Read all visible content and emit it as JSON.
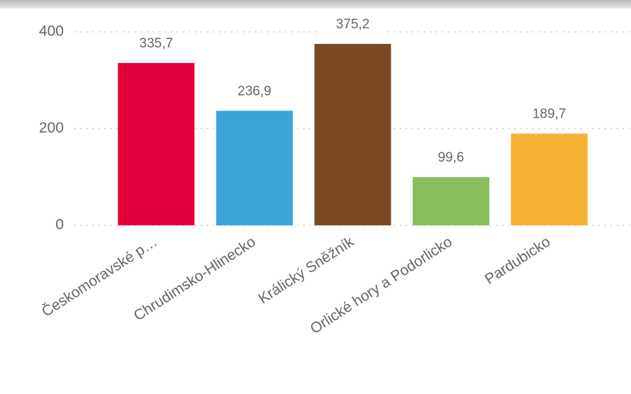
{
  "chart_data": {
    "type": "bar",
    "categories": [
      "Českomoravské p…",
      "Chrudimsko-Hlinecko",
      "Králický Sněžník",
      "Orlické hory a Podorlicko",
      "Pardubicko"
    ],
    "values": [
      335.7,
      236.9,
      375.2,
      99.6,
      189.7
    ],
    "value_labels": [
      "335,7",
      "236,9",
      "375,2",
      "99,6",
      "189,7"
    ],
    "colors": [
      "#e4003b",
      "#3ba5d8",
      "#7a4b22",
      "#88bf5c",
      "#f6b233"
    ],
    "ylim": [
      0,
      400
    ],
    "yticks": [
      0,
      200,
      400
    ],
    "grid": true
  }
}
